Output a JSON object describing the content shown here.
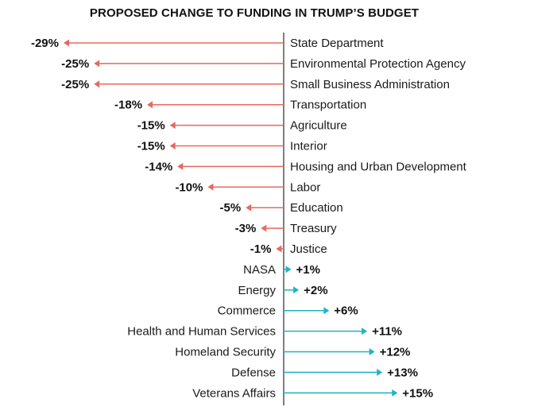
{
  "chart_data": {
    "type": "bar",
    "title": "PROPOSED CHANGE TO FUNDING IN TRUMP’S BUDGET",
    "categories": [
      "State Department",
      "Environmental Protection Agency",
      "Small Business Administration",
      "Transportation",
      "Agriculture",
      "Interior",
      "Housing and Urban Development",
      "Labor",
      "Education",
      "Treasury",
      "Justice",
      "NASA",
      "Energy",
      "Commerce",
      "Health and Human Services",
      "Homeland Security",
      "Defense",
      "Veterans Affairs"
    ],
    "values": [
      -29,
      -25,
      -25,
      -18,
      -15,
      -15,
      -14,
      -10,
      -5,
      -3,
      -1,
      1,
      2,
      6,
      11,
      12,
      13,
      15
    ],
    "value_labels": [
      "-29%",
      "-25%",
      "-25%",
      "-18%",
      "-15%",
      "-15%",
      "-14%",
      "-10%",
      "-5%",
      "-3%",
      "-1%",
      "+1%",
      "+2%",
      "+6%",
      "+11%",
      "+12%",
      "+13%",
      "+15%"
    ],
    "orientation": "horizontal",
    "mark": "arrow",
    "unit": "%",
    "xlim": [
      -29,
      15
    ],
    "grid": false,
    "legend": "none",
    "colors": {
      "negative": "#e8685f",
      "positive": "#1fb3c2",
      "axis": "#555555"
    }
  }
}
